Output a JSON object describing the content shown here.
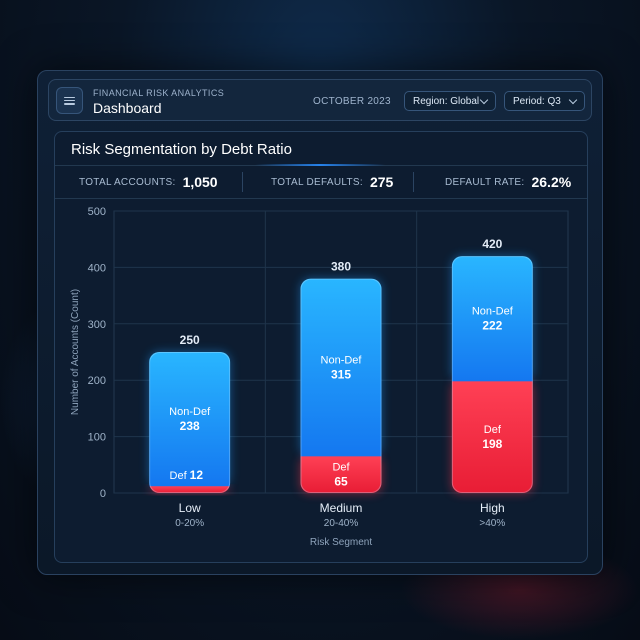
{
  "header": {
    "subtitle": "FINANCIAL RISK ANALYTICS",
    "title": "Dashboard",
    "date": "OCTOBER 2023",
    "region_label": "Region: Global",
    "period_label": "Period: Q3",
    "menu_icon": "menu-icon",
    "chevron_icon": "chevron-down-icon"
  },
  "stats": {
    "total_accounts_label": "TOTAL ACCOUNTS:",
    "total_accounts": "1,050",
    "total_defaults_label": "TOTAL DEFAULTS:",
    "total_defaults": "275",
    "default_rate_label": "DEFAULT RATE:",
    "default_rate": "26.2%"
  },
  "colors": {
    "non_default": "#1a9dff",
    "default": "#ff3045",
    "grid": "#22384f",
    "accent": "#2a8cff"
  },
  "chart_data": {
    "type": "bar",
    "stacked": true,
    "title": "Risk Segmentation by Debt Ratio",
    "xlabel": "Risk Segment",
    "ylabel": "Number of Accounts (Count)",
    "ylim": [
      0,
      500
    ],
    "yticks": [
      0,
      100,
      200,
      300,
      400,
      500
    ],
    "grid": true,
    "categories": [
      "Low",
      "Medium",
      "High"
    ],
    "category_ranges": [
      "0-20%",
      "20-40%",
      ">40%"
    ],
    "totals": [
      250,
      380,
      420
    ],
    "series": [
      {
        "name": "Def",
        "values": [
          12,
          65,
          198
        ],
        "color": "#ff3045"
      },
      {
        "name": "Non-Def",
        "values": [
          238,
          315,
          222
        ],
        "color": "#1a9dff"
      }
    ]
  }
}
